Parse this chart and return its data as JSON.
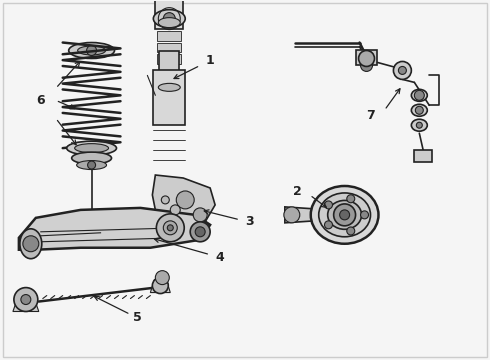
{
  "background_color": "#f5f5f5",
  "line_color": "#222222",
  "label_color": "#111111",
  "fig_width": 4.9,
  "fig_height": 3.6,
  "dpi": 100,
  "border_color": "#cccccc"
}
